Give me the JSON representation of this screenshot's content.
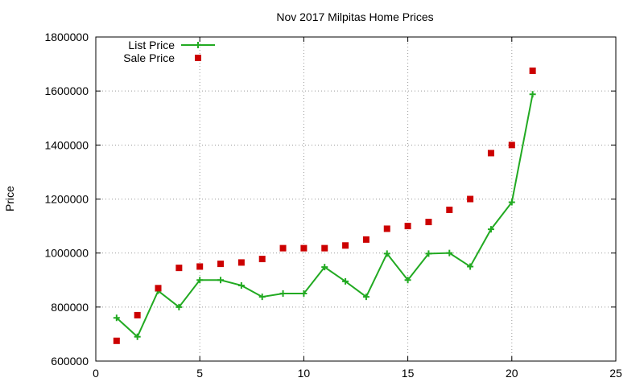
{
  "chart_data": {
    "type": "line",
    "title": "Nov 2017 Milpitas Home Prices",
    "xlabel": "",
    "ylabel": "Price",
    "xlim": [
      0,
      25
    ],
    "ylim": [
      600000,
      1800000
    ],
    "x_ticks": [
      "0",
      "5",
      "10",
      "15",
      "20",
      "25"
    ],
    "y_ticks": [
      "600000",
      "800000",
      "1000000",
      "1200000",
      "1400000",
      "1600000",
      "1800000"
    ],
    "grid": true,
    "legend_position": "top-left",
    "x": [
      1,
      2,
      3,
      4,
      5,
      6,
      7,
      8,
      9,
      10,
      11,
      12,
      13,
      14,
      15,
      16,
      17,
      18,
      19,
      20,
      21
    ],
    "series": [
      {
        "name": "List Price",
        "style": "line-points",
        "marker": "plus",
        "color": "#22aa22",
        "values": [
          760000,
          690000,
          860000,
          800000,
          900000,
          900000,
          880000,
          838000,
          850000,
          850000,
          948000,
          895000,
          838000,
          998000,
          900000,
          998000,
          1000000,
          950000,
          1088000,
          1188000,
          1588000
        ]
      },
      {
        "name": "Sale Price",
        "style": "points",
        "marker": "square",
        "color": "#cc0000",
        "values": [
          675000,
          770000,
          870000,
          945000,
          950000,
          960000,
          965000,
          978000,
          1018000,
          1018000,
          1018000,
          1028000,
          1050000,
          1090000,
          1100000,
          1115000,
          1160000,
          1200000,
          1370000,
          1400000,
          1675000
        ]
      }
    ]
  }
}
